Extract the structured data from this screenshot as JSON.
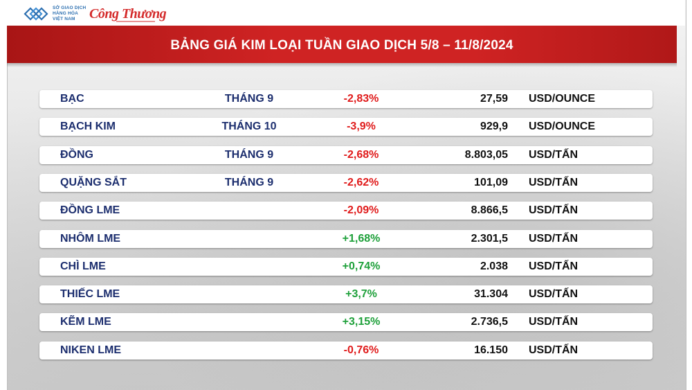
{
  "header": {
    "logo_sgd_lines": [
      "SỞ GIAO DỊCH",
      "HÀNG HÓA",
      "VIỆT NAM"
    ],
    "logo_ct": "Công Thương"
  },
  "title": "BẢNG GIÁ KIM LOẠI TUẦN GIAO DỊCH 5/8 – 11/8/2024",
  "colors": {
    "banner": "#cf2323",
    "negative": "#e01b1b",
    "positive": "#1ea03a",
    "label": "#1c2e6e"
  },
  "rows": [
    {
      "name": "BẠC",
      "month": "THÁNG 9",
      "change": "-2,83%",
      "price": "27,59",
      "unit": "USD/OUNCE"
    },
    {
      "name": "BẠCH KIM",
      "month": "THÁNG 10",
      "change": "-3,9%",
      "price": "929,9",
      "unit": "USD/OUNCE"
    },
    {
      "name": "ĐỒNG",
      "month": "THÁNG 9",
      "change": "-2,68%",
      "price": "8.803,05",
      "unit": "USD/TẤN"
    },
    {
      "name": "QUẶNG SẮT",
      "month": "THÁNG 9",
      "change": "-2,62%",
      "price": "101,09",
      "unit": "USD/TẤN"
    },
    {
      "name": "ĐỒNG LME",
      "month": "",
      "change": "-2,09%",
      "price": "8.866,5",
      "unit": "USD/TẤN"
    },
    {
      "name": "NHÔM LME",
      "month": "",
      "change": "+1,68%",
      "price": "2.301,5",
      "unit": "USD/TẤN"
    },
    {
      "name": "CHÌ LME",
      "month": "",
      "change": "+0,74%",
      "price": "2.038",
      "unit": "USD/TẤN"
    },
    {
      "name": "THIẾC LME",
      "month": "",
      "change": "+3,7%",
      "price": "31.304",
      "unit": "USD/TẤN"
    },
    {
      "name": "KẼM LME",
      "month": "",
      "change": "+3,15%",
      "price": "2.736,5",
      "unit": "USD/TẤN"
    },
    {
      "name": "NIKEN LME",
      "month": "",
      "change": "-0,76%",
      "price": "16.150",
      "unit": "USD/TẤN"
    }
  ]
}
